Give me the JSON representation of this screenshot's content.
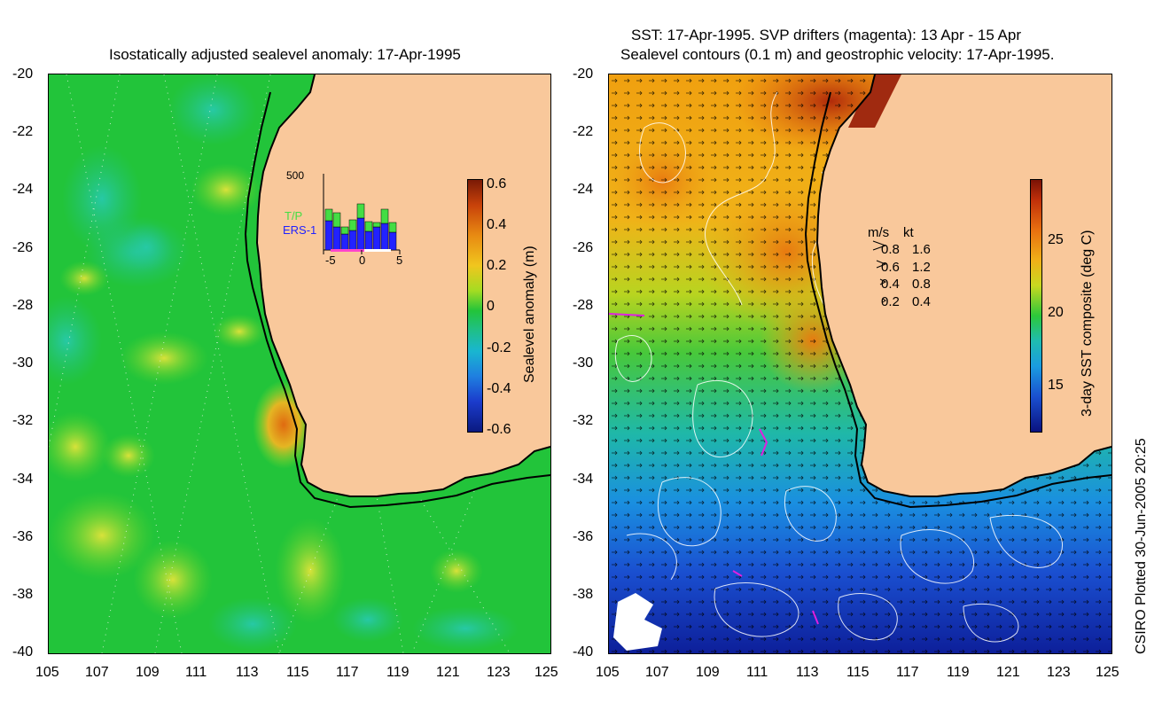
{
  "left_panel": {
    "title": "Isostatically adjusted sealevel anomaly: 17-Apr-1995",
    "y_ticks": [
      "-20",
      "-22",
      "-24",
      "-26",
      "-28",
      "-30",
      "-32",
      "-34",
      "-36",
      "-38",
      "-40"
    ],
    "x_ticks": [
      "105",
      "107",
      "109",
      "111",
      "113",
      "115",
      "117",
      "119",
      "121",
      "123",
      "125"
    ],
    "colorbar": {
      "label": "Sealevel anomaly (m)",
      "ticks": [
        "0.6",
        "0.4",
        "0.2",
        "0",
        "-0.2",
        "-0.4",
        "-0.6"
      ]
    },
    "inset": {
      "y_top_label": "500",
      "x_ticks": [
        "-5",
        "0",
        "5"
      ],
      "legend_tp": "T/P",
      "legend_ers": "ERS-1",
      "tp_color": "#44dd44",
      "ers_color": "#2222ff"
    }
  },
  "right_panel": {
    "title_line1": "SST: 17-Apr-1995. SVP drifters (magenta): 13 Apr - 15 Apr",
    "title_line2": "Sealevel contours (0.1 m) and geostrophic velocity: 17-Apr-1995.",
    "y_ticks": [
      "-20",
      "-22",
      "-24",
      "-26",
      "-28",
      "-30",
      "-32",
      "-34",
      "-36",
      "-38",
      "-40"
    ],
    "x_ticks": [
      "105",
      "107",
      "109",
      "111",
      "113",
      "115",
      "117",
      "119",
      "121",
      "123",
      "125"
    ],
    "colorbar": {
      "label": "3-day SST composite (deg C)",
      "ticks": [
        "25",
        "20",
        "15"
      ]
    },
    "velocity_legend": {
      "header_ms": "m/s",
      "header_kt": "kt",
      "rows": [
        {
          "ms": "0.8",
          "kt": "1.6"
        },
        {
          "ms": "0.6",
          "kt": "1.2"
        },
        {
          "ms": "0.4",
          "kt": "0.8"
        },
        {
          "ms": "0.2",
          "kt": "0.4"
        }
      ]
    }
  },
  "credit": "CSIRO Plotted 30-Jun-2005 20:25",
  "colors": {
    "land": "#f9c89b",
    "ocean_green": "#1fc31f",
    "coast": "#000000"
  }
}
